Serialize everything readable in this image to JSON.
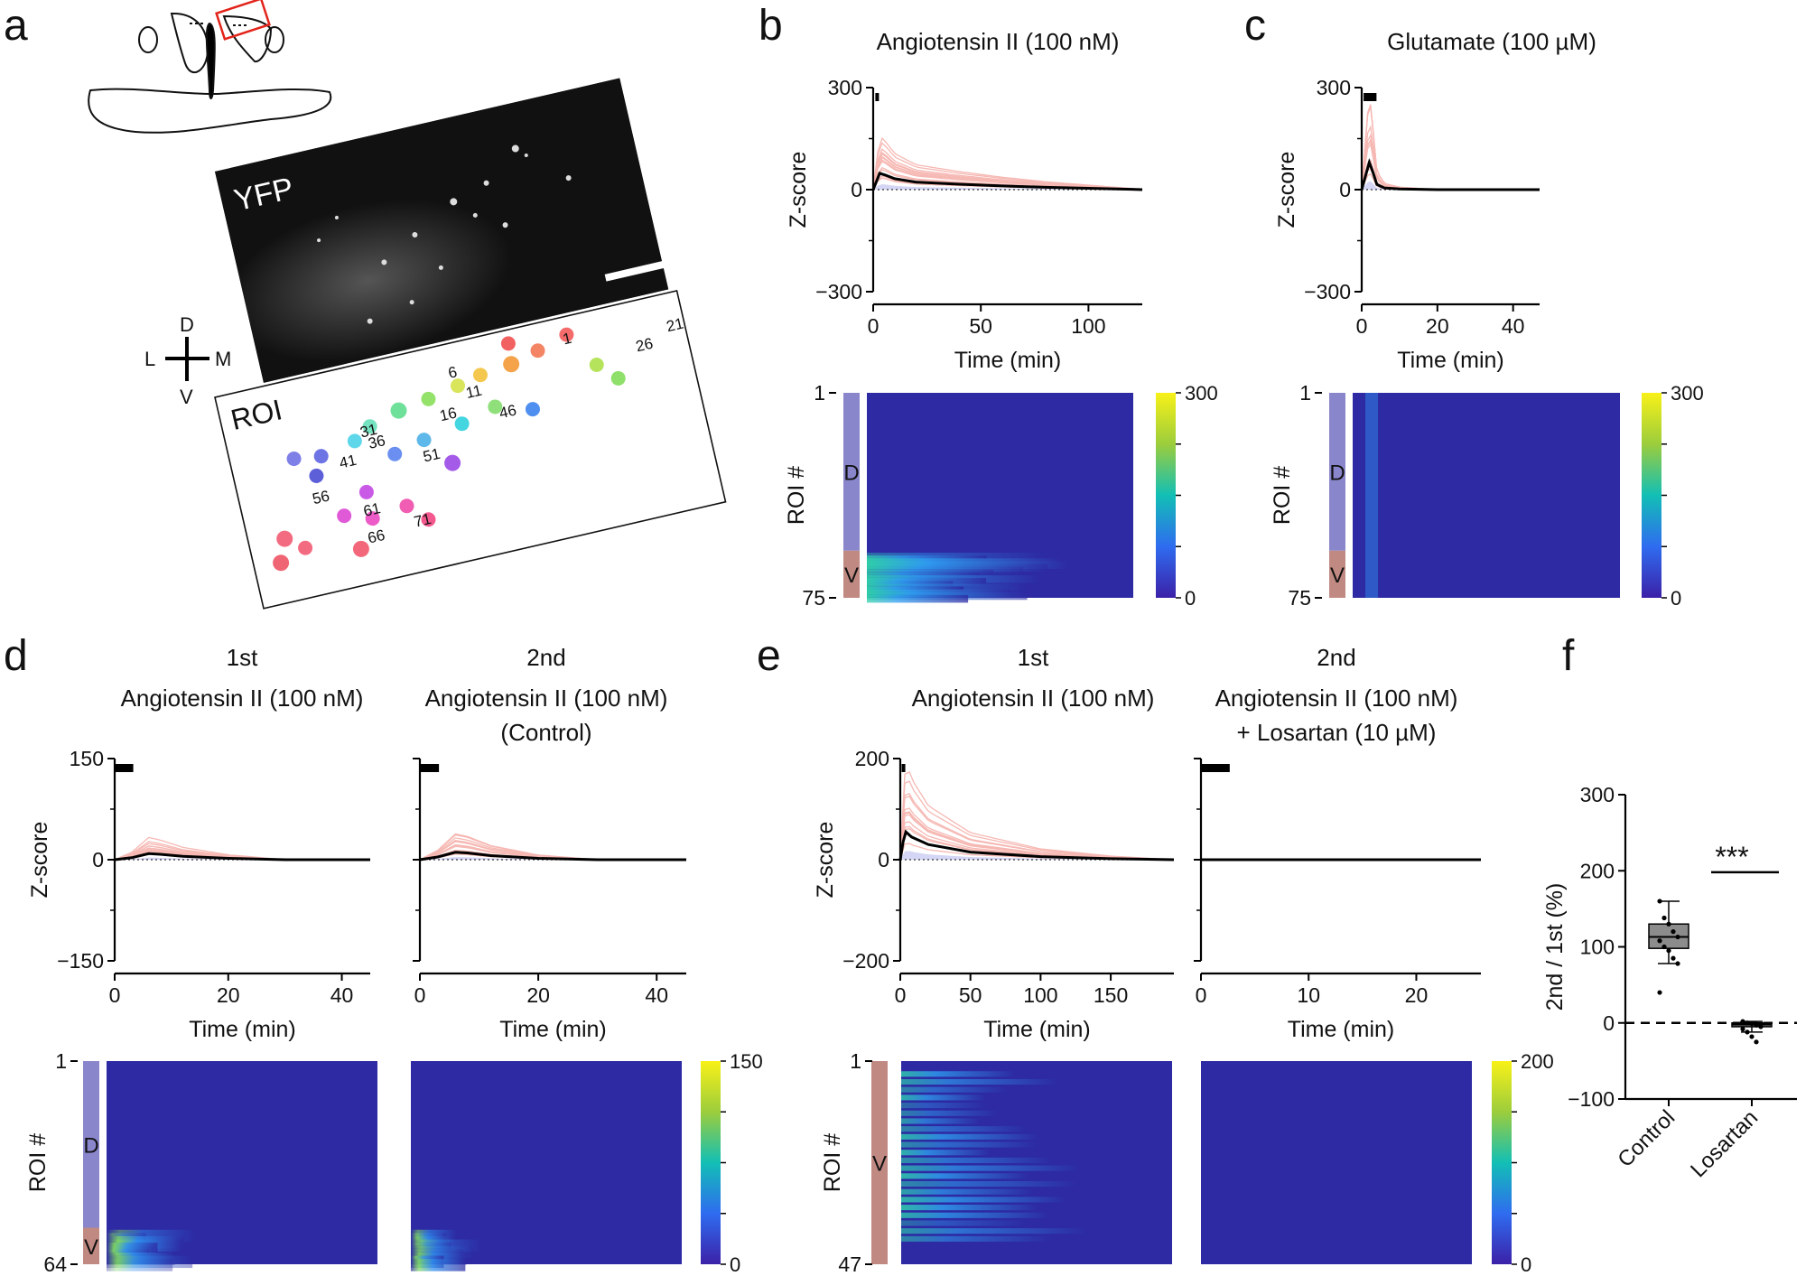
{
  "panel_labels": {
    "a": "a",
    "b": "b",
    "c": "c",
    "d": "d",
    "e": "e",
    "f": "f"
  },
  "panel_a": {
    "image_label": "YFP",
    "roi_label": "ROI",
    "orientation": {
      "dorsal": "D",
      "ventral": "V",
      "lateral": "L",
      "medial": "M"
    },
    "roi_numbers": [
      "1",
      "6",
      "11",
      "16",
      "21",
      "26",
      "31",
      "36",
      "41",
      "46",
      "51",
      "56",
      "61",
      "66",
      "71"
    ]
  },
  "colors": {
    "trace_pink": "#f6b8b3",
    "trace_blue": "#b9b9ee",
    "mean_trace": "#000000",
    "dorsal_bar": "#8a86cc",
    "ventral_bar": "#c08a83",
    "heatmap_base": "#2d2aa3",
    "box_fill": "#8c8c8c"
  },
  "chart_data": [
    {
      "id": "b-trace",
      "type": "line",
      "title": "Angiotensin II (100 nM)",
      "xlabel": "Time (min)",
      "ylabel": "Z-score",
      "xlim": [
        0,
        125
      ],
      "ylim": [
        -300,
        300
      ],
      "xticks": [
        "0",
        "50",
        "100"
      ],
      "yticks": [
        "300",
        "0",
        "−300"
      ],
      "drug_bar": [
        1,
        2
      ],
      "series": [
        {
          "name": "mean",
          "x": [
            0,
            3,
            6,
            10,
            20,
            40,
            60,
            80,
            100,
            120,
            125
          ],
          "y": [
            0,
            48,
            42,
            32,
            22,
            16,
            11,
            7,
            4,
            1,
            0
          ]
        }
      ]
    },
    {
      "id": "c-trace",
      "type": "line",
      "title": "Glutamate (100 µM)",
      "xlabel": "Time (min)",
      "ylabel": "Z-score",
      "xlim": [
        0,
        47
      ],
      "ylim": [
        -300,
        300
      ],
      "xticks": [
        "0",
        "20",
        "40"
      ],
      "yticks": [
        "300",
        "0",
        "−300"
      ],
      "drug_bar": [
        0.5,
        2
      ],
      "series": [
        {
          "name": "mean",
          "x": [
            0,
            1,
            2,
            3,
            4,
            6,
            10,
            20,
            47
          ],
          "y": [
            0,
            40,
            80,
            50,
            15,
            5,
            2,
            0,
            0
          ]
        }
      ]
    },
    {
      "id": "b-heat",
      "type": "heatmap",
      "ylabel": "ROI #",
      "yticks": [
        "1",
        "75"
      ],
      "colorbar": [
        "300",
        "0"
      ],
      "groups": [
        "D",
        "V"
      ]
    },
    {
      "id": "c-heat",
      "type": "heatmap",
      "ylabel": "ROI #",
      "yticks": [
        "1",
        "75"
      ],
      "colorbar": [
        "300",
        "0"
      ],
      "groups": [
        "D",
        "V"
      ]
    },
    {
      "id": "d1-trace",
      "type": "line",
      "title_line1": "1st",
      "title_line2": "Angiotensin II (100 nM)",
      "xlabel": "Time (min)",
      "ylabel": "Z-score",
      "xlim": [
        0,
        45
      ],
      "ylim": [
        -150,
        150
      ],
      "xticks": [
        "0",
        "20",
        "40"
      ],
      "yticks": [
        "150",
        "0",
        "−150"
      ],
      "drug_bar": [
        0,
        2
      ],
      "series": [
        {
          "name": "mean",
          "x": [
            0,
            3,
            6,
            8,
            12,
            20,
            30,
            45
          ],
          "y": [
            0,
            3,
            9,
            8,
            5,
            2,
            0,
            0
          ]
        }
      ]
    },
    {
      "id": "d2-trace",
      "type": "line",
      "title_line1": "2nd",
      "title_line2": "Angiotensin II (100 nM)",
      "title_line3": "(Control)",
      "xlabel": "Time (min)",
      "xlim": [
        0,
        45
      ],
      "ylim": [
        -150,
        150
      ],
      "xticks": [
        "0",
        "20",
        "40"
      ],
      "drug_bar": [
        0,
        2
      ],
      "series": [
        {
          "name": "mean",
          "x": [
            0,
            3,
            6,
            8,
            12,
            20,
            30,
            45
          ],
          "y": [
            0,
            4,
            11,
            10,
            6,
            2,
            0,
            0
          ]
        }
      ]
    },
    {
      "id": "d-heat",
      "type": "heatmap",
      "ylabel": "ROI #",
      "yticks": [
        "1",
        "64"
      ],
      "colorbar": [
        "150",
        "0"
      ],
      "groups": [
        "D",
        "V"
      ]
    },
    {
      "id": "e1-trace",
      "type": "line",
      "title_line1": "1st",
      "title_line2": "Angiotensin II (100 nM)",
      "xlabel": "Time (min)",
      "ylabel": "Z-score",
      "xlim": [
        0,
        195
      ],
      "ylim": [
        -200,
        200
      ],
      "xticks": [
        "0",
        "50",
        "100",
        "150"
      ],
      "yticks": [
        "200",
        "0",
        "−200"
      ],
      "drug_bar": [
        1,
        2
      ],
      "series": [
        {
          "name": "mean",
          "x": [
            0,
            2,
            4,
            8,
            20,
            50,
            100,
            150,
            195
          ],
          "y": [
            0,
            35,
            55,
            45,
            30,
            15,
            6,
            2,
            0
          ]
        }
      ]
    },
    {
      "id": "e2-trace",
      "type": "line",
      "title_line1": "2nd",
      "title_line2": "Angiotensin II (100 nM)",
      "title_line3": "+ Losartan (10 µM)",
      "xlabel": "Time (min)",
      "xlim": [
        0,
        26
      ],
      "ylim": [
        -200,
        200
      ],
      "xticks": [
        "0",
        "10",
        "20"
      ],
      "drug_bar": [
        0,
        2
      ],
      "series": [
        {
          "name": "mean",
          "x": [
            0,
            26
          ],
          "y": [
            0,
            0
          ]
        }
      ]
    },
    {
      "id": "e-heat",
      "type": "heatmap",
      "ylabel": "ROI #",
      "yticks": [
        "1",
        "47"
      ],
      "colorbar": [
        "200",
        "0"
      ],
      "groups": [
        "V"
      ]
    },
    {
      "id": "f-box",
      "type": "box",
      "ylabel": "2nd / 1st (%)",
      "ylim": [
        -100,
        300
      ],
      "yticks": [
        "300",
        "200",
        "100",
        "0",
        "−100"
      ],
      "categories": [
        "Control",
        "Losartan"
      ],
      "significance": "***",
      "boxes": [
        {
          "name": "Control",
          "min": 78,
          "q1": 98,
          "median": 113,
          "q3": 130,
          "max": 160,
          "points": [
            160,
            138,
            130,
            120,
            113,
            108,
            100,
            95,
            85,
            78,
            40
          ]
        },
        {
          "name": "Losartan",
          "min": -12,
          "q1": -5,
          "median": -2,
          "q3": 0,
          "max": 2,
          "points": [
            2,
            0,
            -1,
            -3,
            -5,
            -8,
            -12,
            -18,
            -25
          ]
        }
      ]
    }
  ]
}
